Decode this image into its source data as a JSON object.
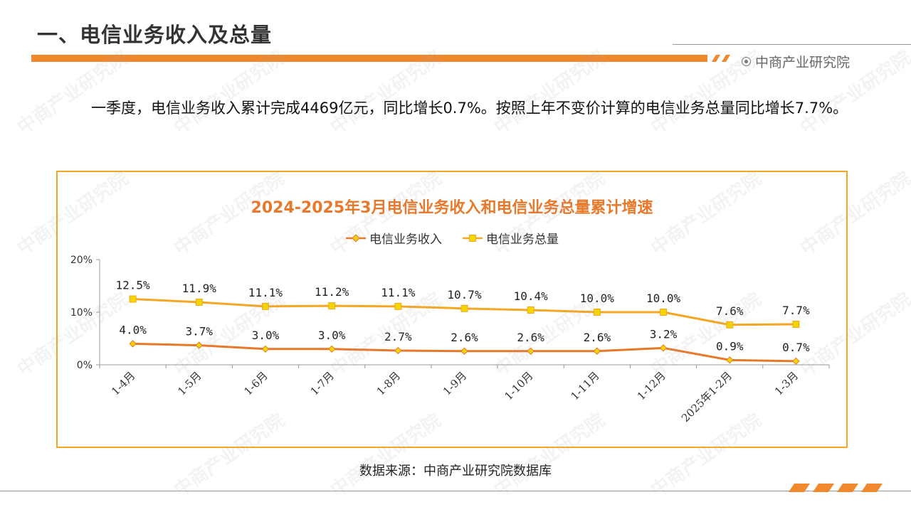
{
  "header": {
    "title": "一、电信业务收入及总量",
    "brand": "中商产业研究院"
  },
  "paragraph": "一季度，电信业务收入累计完成4469亿元，同比增长0.7%。按照上年不变价计算的电信业务总量同比增长7.7%。",
  "source": "数据来源：中商产业研究院数据库",
  "watermark": "中商产业研究院",
  "colors": {
    "accent": "#f0882e",
    "series_income": "#e8782a",
    "series_total": "#f5a623",
    "title": "#e8782a"
  },
  "chart_data": {
    "type": "line",
    "title": "2024-2025年3月电信业务收入和电信业务总量累计增速",
    "categories": [
      "1-4月",
      "1-5月",
      "1-6月",
      "1-7月",
      "1-8月",
      "1-9月",
      "1-10月",
      "1-11月",
      "1-12月",
      "2025年1-2月",
      "1-3月"
    ],
    "series": [
      {
        "name": "电信业务收入",
        "values": [
          4.0,
          3.7,
          3.0,
          3.0,
          2.7,
          2.6,
          2.6,
          2.6,
          3.2,
          0.9,
          0.7
        ],
        "labels": [
          "4.0%",
          "3.7%",
          "3.0%",
          "3.0%",
          "2.7%",
          "2.6%",
          "2.6%",
          "2.6%",
          "3.2%",
          "0.9%",
          "0.7%"
        ],
        "color": "#e8782a",
        "marker": "diamond"
      },
      {
        "name": "电信业务总量",
        "values": [
          12.5,
          11.9,
          11.1,
          11.2,
          11.1,
          10.7,
          10.4,
          10.0,
          10.0,
          7.6,
          7.7
        ],
        "labels": [
          "12.5%",
          "11.9%",
          "11.1%",
          "11.2%",
          "11.1%",
          "10.7%",
          "10.4%",
          "10.0%",
          "10.0%",
          "7.6%",
          "7.7%"
        ],
        "color": "#f5a623",
        "marker": "square"
      }
    ],
    "ylim": [
      0,
      20
    ],
    "yticks": [
      "0%",
      "10%",
      "20%"
    ],
    "xlabel": "",
    "ylabel": "",
    "legend": "top-center",
    "grid": false
  }
}
